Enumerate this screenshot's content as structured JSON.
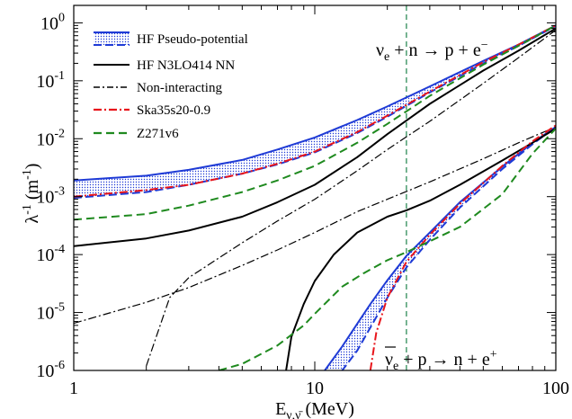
{
  "chart_data": {
    "type": "line",
    "xscale": "log",
    "yscale": "log",
    "xlim": [
      1,
      100
    ],
    "ylim": [
      1e-06,
      2
    ],
    "xlabel_main": "E",
    "xlabel_sub": "ν,ν̄",
    "xlabel_unit": " (MeV)",
    "ylabel_main": "λ",
    "ylabel_sup": "-1",
    "ylabel_unit": " (m",
    "ylabel_unit_sup": "-1",
    "ylabel_close": ")",
    "x_ticks": [
      {
        "value": 1,
        "label": "1"
      },
      {
        "value": 10,
        "label": "10"
      },
      {
        "value": 100,
        "label": "100"
      }
    ],
    "y_ticks": [
      {
        "value": 1e-06,
        "base": "10",
        "exp": "-6"
      },
      {
        "value": 1e-05,
        "base": "10",
        "exp": "-5"
      },
      {
        "value": 0.0001,
        "base": "10",
        "exp": "-4"
      },
      {
        "value": 0.001,
        "base": "10",
        "exp": "-3"
      },
      {
        "value": 0.01,
        "base": "10",
        "exp": "-2"
      },
      {
        "value": 0.1,
        "base": "10",
        "exp": "-1"
      },
      {
        "value": 1,
        "base": "10",
        "exp": "0"
      }
    ],
    "vertical_line": {
      "x": 24,
      "color": "#2e8b57"
    },
    "annotations": [
      {
        "text": "ν",
        "sub": "e",
        "rest": " + n → p + e",
        "sup": "−",
        "x": 13,
        "y": 0.12
      },
      {
        "text": "ν",
        "sub": "e",
        "rest": " + p → n + e",
        "sup": "+",
        "x": 26,
        "y": 5.5e-06,
        "overbar": true
      }
    ],
    "legend": [
      {
        "label": "HF Pseudo-potential",
        "style": "band",
        "color": "#1f3bd6"
      },
      {
        "label": "HF N3LO414 NN",
        "style": "solid",
        "color": "#000000"
      },
      {
        "label": "Non-interacting",
        "style": "dashdot",
        "color": "#000000"
      },
      {
        "label": "Ska35s20-0.9",
        "style": "dashdot",
        "color": "#e8151b"
      },
      {
        "label": "Z271v6",
        "style": "dashed",
        "color": "#1f8a1f"
      }
    ],
    "series": [
      {
        "name": "HF Pseudo-potential",
        "reaction": "nu_e + n",
        "kind": "band",
        "color": "#1f3bd6",
        "x": [
          1,
          2,
          3,
          5,
          7,
          10,
          15,
          20,
          30,
          50,
          70,
          100
        ],
        "upper": [
          0.0019,
          0.0023,
          0.0029,
          0.0043,
          0.0065,
          0.0105,
          0.021,
          0.036,
          0.08,
          0.22,
          0.42,
          0.9
        ],
        "lower": [
          0.00095,
          0.0012,
          0.0016,
          0.0025,
          0.0036,
          0.0058,
          0.0125,
          0.024,
          0.063,
          0.2,
          0.4,
          0.88
        ]
      },
      {
        "name": "HF Pseudo-potential",
        "reaction": "antinu_e + p",
        "kind": "band",
        "color": "#1f3bd6",
        "x": [
          11,
          13,
          15,
          17,
          20,
          24,
          30,
          40,
          60,
          80,
          100
        ],
        "upper": [
          1e-06,
          2.6e-06,
          6.4e-06,
          1.4e-05,
          3.6e-05,
          9.5e-05,
          0.00024,
          0.0008,
          0.0033,
          0.0085,
          0.016
        ],
        "lower": [
          null,
          1e-06,
          2.2e-06,
          5.5e-06,
          1.8e-05,
          6e-05,
          0.00018,
          0.00065,
          0.003,
          0.008,
          0.016
        ]
      },
      {
        "name": "HF N3LO414 NN",
        "reaction": "nu_e + n",
        "kind": "line",
        "dash": "solid",
        "color": "#000000",
        "x": [
          1,
          2,
          3,
          5,
          7,
          10,
          15,
          20,
          30,
          50,
          70,
          100
        ],
        "y": [
          0.00014,
          0.00019,
          0.00026,
          0.00045,
          0.0008,
          0.0016,
          0.0048,
          0.012,
          0.04,
          0.15,
          0.33,
          0.8
        ]
      },
      {
        "name": "HF N3LO414 NN",
        "reaction": "antinu_e + p",
        "kind": "line",
        "dash": "solid",
        "color": "#000000",
        "x": [
          7.6,
          8,
          9,
          10,
          12,
          15,
          20,
          24,
          30,
          40,
          60,
          80,
          100
        ],
        "y": [
          1e-06,
          3.8e-06,
          1.4e-05,
          3.5e-05,
          0.0001,
          0.00024,
          0.00045,
          0.00058,
          0.00085,
          0.0016,
          0.0042,
          0.0085,
          0.015
        ]
      },
      {
        "name": "Non-interacting",
        "reaction": "nu_e + n",
        "kind": "line",
        "dash": "dashdot",
        "color": "#000000",
        "x": [
          2,
          2.5,
          3,
          5,
          7,
          10,
          15,
          20,
          30,
          50,
          70,
          100
        ],
        "y": [
          1.2e-06,
          1.8e-05,
          4e-05,
          0.00016,
          0.00038,
          0.0009,
          0.0028,
          0.0065,
          0.02,
          0.09,
          0.25,
          0.75
        ]
      },
      {
        "name": "Non-interacting",
        "reaction": "antinu_e + p",
        "kind": "line",
        "dash": "dashdot",
        "color": "#000000",
        "x": [
          1,
          2,
          3,
          5,
          7,
          10,
          15,
          20,
          30,
          50,
          70,
          100
        ],
        "y": [
          6.5e-06,
          1.5e-05,
          2.7e-05,
          6.5e-05,
          0.00012,
          0.00024,
          0.00055,
          0.0009,
          0.0018,
          0.0045,
          0.0085,
          0.016
        ]
      },
      {
        "name": "Ska35s20-0.9",
        "reaction": "nu_e + n",
        "kind": "line",
        "dash": "dashdot",
        "color": "#e8151b",
        "x": [
          1,
          2,
          3,
          5,
          7,
          10,
          15,
          20,
          30,
          50,
          70,
          100
        ],
        "y": [
          0.001,
          0.0013,
          0.0016,
          0.0025,
          0.0037,
          0.006,
          0.013,
          0.025,
          0.065,
          0.21,
          0.42,
          0.9
        ]
      },
      {
        "name": "Ska35s20-0.9",
        "reaction": "antinu_e + p",
        "kind": "line",
        "dash": "dashdot",
        "color": "#e8151b",
        "x": [
          17,
          18,
          20,
          24,
          30,
          40,
          60,
          80,
          100
        ],
        "y": [
          1e-06,
          4.5e-06,
          1.8e-05,
          7.5e-05,
          0.00022,
          0.00075,
          0.0034,
          0.009,
          0.017
        ]
      },
      {
        "name": "Z271v6",
        "reaction": "nu_e + n",
        "kind": "line",
        "dash": "dashed",
        "color": "#1f8a1f",
        "x": [
          1,
          2,
          3,
          5,
          7,
          10,
          15,
          20,
          30,
          50,
          70,
          100
        ],
        "y": [
          0.0004,
          0.0005,
          0.0007,
          0.0012,
          0.0019,
          0.0034,
          0.0085,
          0.018,
          0.055,
          0.19,
          0.4,
          0.9
        ]
      },
      {
        "name": "Z271v6",
        "reaction": "antinu_e + p",
        "kind": "line",
        "dash": "dashed",
        "color": "#1f8a1f",
        "x": [
          4,
          5,
          7,
          9,
          10,
          13,
          16,
          20,
          24,
          30,
          40,
          60,
          80,
          100
        ],
        "y": [
          1e-06,
          1.3e-06,
          2.7e-06,
          6e-06,
          9.5e-06,
          2.8e-05,
          4.8e-05,
          8e-05,
          0.00011,
          0.00017,
          0.0003,
          0.0011,
          0.0055,
          0.015
        ]
      }
    ]
  }
}
